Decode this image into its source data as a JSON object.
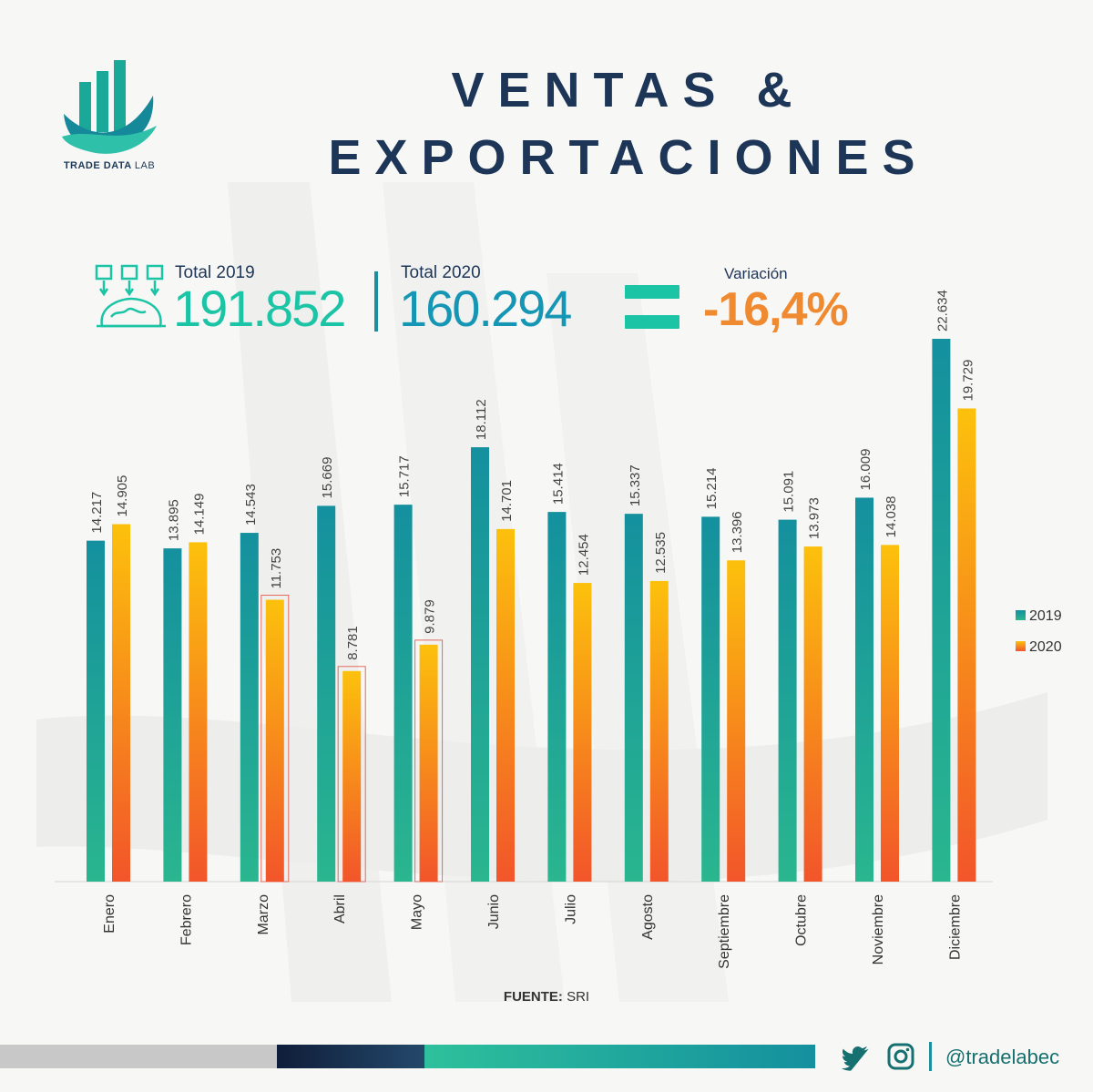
{
  "brand": {
    "name_bold": "TRADE DATA",
    "name_light": "LAB"
  },
  "title": {
    "line1": "VENTAS &",
    "line2": "EXPORTACIONES"
  },
  "kpis": {
    "total2019_label": "Total 2019",
    "total2019_value": "191.852",
    "total2020_label": "Total 2020",
    "total2020_value": "160.294",
    "variation_label": "Variación",
    "variation_value": "-16,4%"
  },
  "colors": {
    "navy": "#1d3557",
    "teal_top": "#14909e",
    "teal_bottom": "#2ab68f",
    "orange_top": "#fcc10c",
    "orange_bottom": "#f2552a",
    "kpi_2019": "#1cc4a6",
    "kpi_2020": "#1596b4",
    "variation": "#f08a30",
    "highlight_box": "#e46a5e"
  },
  "icons": {
    "kpi": "exports-globe-icon",
    "twitter": "twitter-icon",
    "instagram": "instagram-icon"
  },
  "chart_data": {
    "type": "bar",
    "categories": [
      "Enero",
      "Febrero",
      "Marzo",
      "Abril",
      "Mayo",
      "Junio",
      "Julio",
      "Agosto",
      "Septiembre",
      "Octubre",
      "Noviembre",
      "Diciembre"
    ],
    "series": [
      {
        "name": "2019",
        "values": [
          14217,
          13895,
          14543,
          15669,
          15717,
          18112,
          15414,
          15337,
          15214,
          15091,
          16009,
          22634
        ],
        "labels": [
          "14.217",
          "13.895",
          "14.543",
          "15.669",
          "15.717",
          "18.112",
          "15.414",
          "15.337",
          "15.214",
          "15.091",
          "16.009",
          "22.634"
        ]
      },
      {
        "name": "2020",
        "values": [
          14905,
          14149,
          11753,
          8781,
          9879,
          14701,
          12454,
          12535,
          13396,
          13973,
          14038,
          19729
        ],
        "labels": [
          "14.905",
          "14.149",
          "11.753",
          "8.781",
          "9.879",
          "14.701",
          "12.454",
          "12.535",
          "13.396",
          "13.973",
          "14.038",
          "19.729"
        ]
      }
    ],
    "highlighted": [
      {
        "series": "2020",
        "category": "Marzo"
      },
      {
        "series": "2020",
        "category": "Abril"
      },
      {
        "series": "2020",
        "category": "Mayo"
      }
    ],
    "ylim": [
      0,
      22634
    ],
    "grid": false,
    "legend": "right"
  },
  "source": {
    "label": "FUENTE:",
    "value": "SRI"
  },
  "social": {
    "handle": "@tradelabec"
  }
}
